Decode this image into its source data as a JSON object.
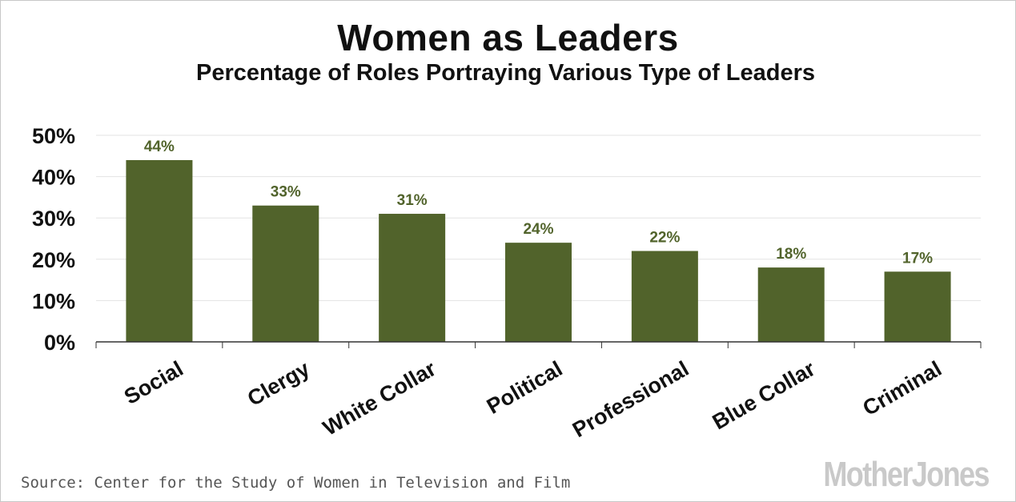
{
  "chart_data": {
    "type": "bar",
    "title": "Women as Leaders",
    "subtitle": "Percentage of Roles Portraying Various Type of Leaders",
    "categories": [
      "Social",
      "Clergy",
      "White Collar",
      "Political",
      "Professional",
      "Blue Collar",
      "Criminal"
    ],
    "values": [
      44,
      33,
      31,
      24,
      22,
      18,
      17
    ],
    "data_labels": [
      "44%",
      "33%",
      "31%",
      "24%",
      "22%",
      "18%",
      "17%"
    ],
    "ylim": [
      0,
      50
    ],
    "yticks": [
      0,
      10,
      20,
      30,
      40,
      50
    ],
    "ytick_labels": [
      "0%",
      "10%",
      "20%",
      "30%",
      "40%",
      "50%"
    ],
    "xlabel": "",
    "ylabel": "",
    "grid": true,
    "bar_color": "#51632b",
    "label_color": "#51632b"
  },
  "footer": {
    "source": "Source: Center for the Study of Women in Television and Film",
    "brand": "MotherJones"
  }
}
